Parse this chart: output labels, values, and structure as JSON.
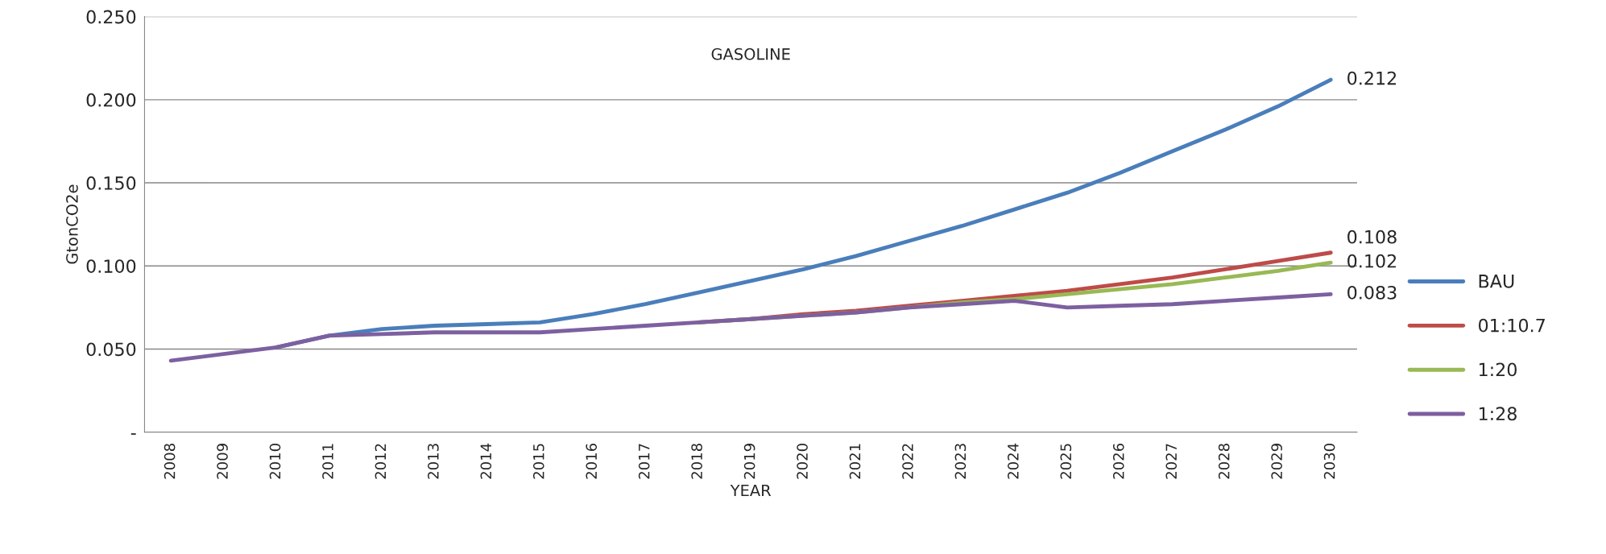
{
  "chart_data": {
    "type": "line",
    "title": "GASOLINE",
    "xlabel": "YEAR",
    "ylabel": "GtonCO2e",
    "categories": [
      "2008",
      "2009",
      "2010",
      "2011",
      "2012",
      "2013",
      "2014",
      "2015",
      "2016",
      "2017",
      "2018",
      "2019",
      "2020",
      "2021",
      "2022",
      "2023",
      "2024",
      "2025",
      "2026",
      "2027",
      "2028",
      "2029",
      "2030"
    ],
    "series": [
      {
        "name": "BAU",
        "color": "#4a7ebb",
        "values": [
          null,
          null,
          0.051,
          0.058,
          0.062,
          0.064,
          0.065,
          0.066,
          0.071,
          0.077,
          0.084,
          0.091,
          0.098,
          0.106,
          0.115,
          0.124,
          0.134,
          0.144,
          0.156,
          0.169,
          0.182,
          0.196,
          0.212
        ]
      },
      {
        "name": "01:10.7",
        "color": "#be4b48",
        "values": [
          null,
          null,
          null,
          null,
          null,
          null,
          null,
          null,
          null,
          null,
          0.066,
          0.068,
          0.071,
          0.073,
          0.076,
          0.079,
          0.082,
          0.085,
          0.089,
          0.093,
          0.098,
          0.103,
          0.108
        ]
      },
      {
        "name": "1:20",
        "color": "#98b954",
        "values": [
          null,
          null,
          null,
          null,
          null,
          null,
          null,
          null,
          null,
          null,
          0.066,
          0.068,
          0.07,
          0.072,
          0.075,
          0.078,
          0.08,
          0.083,
          0.086,
          0.089,
          0.093,
          0.097,
          0.102
        ]
      },
      {
        "name": "1:28",
        "color": "#7d60a0",
        "values": [
          0.043,
          0.047,
          0.051,
          0.058,
          0.059,
          0.06,
          0.06,
          0.06,
          0.062,
          0.064,
          0.066,
          0.068,
          0.07,
          0.072,
          0.075,
          0.077,
          0.079,
          0.075,
          0.076,
          0.077,
          0.079,
          0.081,
          0.083
        ]
      }
    ],
    "ylim": [
      0,
      0.25
    ],
    "yticks": [
      {
        "value": 0,
        "label": "-"
      },
      {
        "value": 0.05,
        "label": "0.050"
      },
      {
        "value": 0.1,
        "label": "0.100"
      },
      {
        "value": 0.15,
        "label": "0.150"
      },
      {
        "value": 0.2,
        "label": "0.200"
      },
      {
        "value": 0.25,
        "label": "0.250"
      }
    ],
    "annotations": [
      {
        "text": "0.212",
        "x": "2030",
        "y": 0.212
      },
      {
        "text": "0.108",
        "x": "2030",
        "y": 0.108
      },
      {
        "text": "0.102",
        "x": "2030",
        "y": 0.102
      },
      {
        "text": "0.083",
        "x": "2030",
        "y": 0.083
      }
    ],
    "grid": "y",
    "legend": "right",
    "marker": "none",
    "line_style": "solid"
  }
}
